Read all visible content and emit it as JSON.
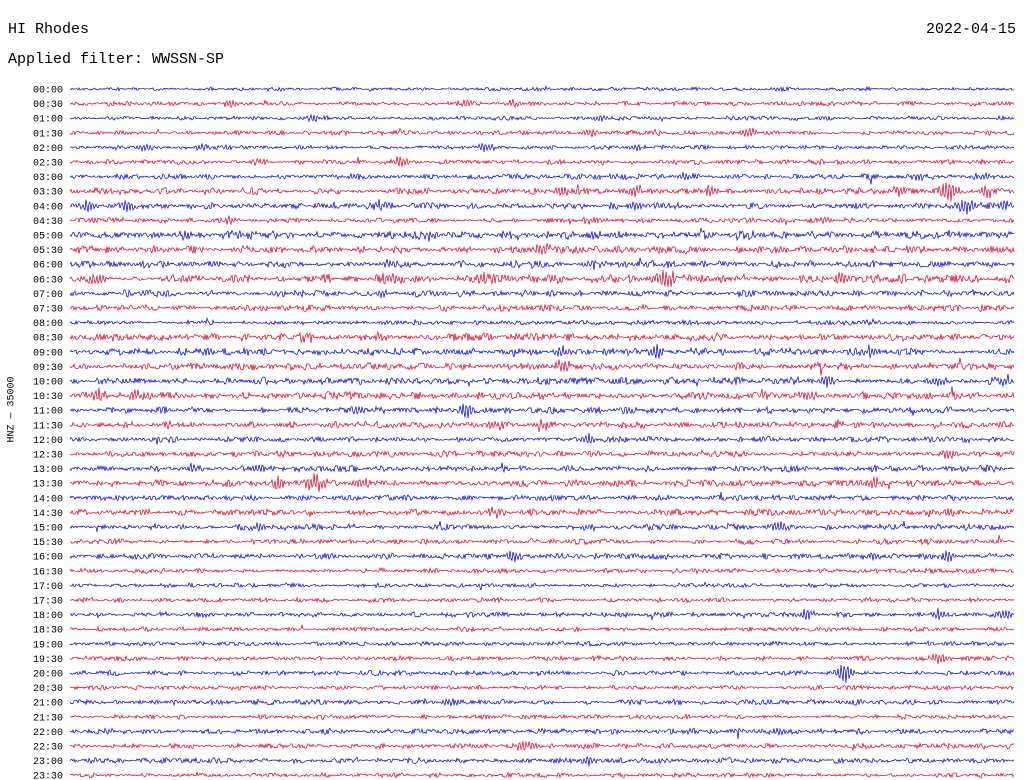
{
  "header": {
    "station": "HI Rhodes",
    "date": "2022-04-15",
    "filter": "Applied filter: WWSSN-SP"
  },
  "y_axis_label": "HNZ — 35000",
  "chart_data": {
    "type": "line",
    "subtype": "helicorder-seismogram",
    "title": "HI Rhodes",
    "date": "2022-04-15",
    "filter": "WWSSN-SP",
    "channel": "HNZ",
    "scale": 35000,
    "ylabel": "HNZ — 35000",
    "row_interval_minutes": 30,
    "rows_count": 48,
    "legend_position": "none",
    "grid": false,
    "trace_colors": {
      "blue": "#0000cc",
      "red": "#d4002a"
    },
    "rows": [
      {
        "label": "00:00",
        "color": "blue",
        "noise": 0.8,
        "events": [
          [
            0.22,
            1.2
          ],
          [
            0.5,
            1.2
          ],
          [
            0.75,
            1.2
          ]
        ]
      },
      {
        "label": "00:30",
        "color": "red",
        "noise": 1.0,
        "events": [
          [
            0.17,
            2.0
          ],
          [
            0.42,
            2.2
          ],
          [
            0.47,
            1.8
          ]
        ]
      },
      {
        "label": "01:00",
        "color": "blue",
        "noise": 0.9,
        "events": [
          [
            0.26,
            2.2
          ],
          [
            0.56,
            1.5
          ]
        ]
      },
      {
        "label": "01:30",
        "color": "red",
        "noise": 1.0,
        "events": [
          [
            0.55,
            2.0
          ],
          [
            0.72,
            2.8
          ]
        ]
      },
      {
        "label": "02:00",
        "color": "blue",
        "noise": 0.9,
        "events": [
          [
            0.08,
            2.0
          ],
          [
            0.14,
            2.0
          ],
          [
            0.44,
            2.0
          ],
          [
            0.6,
            1.5
          ]
        ]
      },
      {
        "label": "02:30",
        "color": "red",
        "noise": 1.1,
        "events": [
          [
            0.2,
            1.5
          ],
          [
            0.35,
            3.2
          ]
        ]
      },
      {
        "label": "03:00",
        "color": "blue",
        "noise": 1.2,
        "events": [
          [
            0.3,
            1.5
          ],
          [
            0.65,
            2.0
          ],
          [
            0.9,
            2.2
          ],
          [
            0.97,
            2.2
          ]
        ]
      },
      {
        "label": "03:30",
        "color": "red",
        "noise": 1.4,
        "events": [
          [
            0.52,
            2.8
          ],
          [
            0.6,
            3.2
          ],
          [
            0.68,
            2.8
          ],
          [
            0.88,
            2.5
          ],
          [
            0.93,
            5.5,
            0.012
          ],
          [
            0.97,
            3.5
          ]
        ]
      },
      {
        "label": "04:00",
        "color": "blue",
        "noise": 1.4,
        "events": [
          [
            0.02,
            3.0
          ],
          [
            0.06,
            3.2
          ],
          [
            0.33,
            2.5
          ],
          [
            0.6,
            2.0
          ],
          [
            0.95,
            3.8,
            0.012
          ],
          [
            0.99,
            3.0
          ]
        ]
      },
      {
        "label": "04:30",
        "color": "red",
        "noise": 1.1,
        "events": [
          [
            0.17,
            2.2
          ],
          [
            0.55,
            1.5
          ],
          [
            0.8,
            1.5
          ]
        ]
      },
      {
        "label": "05:00",
        "color": "blue",
        "noise": 1.9,
        "events": [
          [
            0.38,
            2.5
          ]
        ]
      },
      {
        "label": "05:30",
        "color": "red",
        "noise": 1.7,
        "events": [
          [
            0.5,
            2.5
          ]
        ]
      },
      {
        "label": "06:00",
        "color": "blue",
        "noise": 1.5,
        "events": [
          [
            0.34,
            2.8
          ],
          [
            0.55,
            2.2
          ]
        ]
      },
      {
        "label": "06:30",
        "color": "red",
        "noise": 1.9,
        "events": [
          [
            0.03,
            2.8
          ],
          [
            0.34,
            2.8
          ],
          [
            0.44,
            3.0
          ],
          [
            0.63,
            4.5,
            0.012
          ],
          [
            0.82,
            2.8
          ]
        ]
      },
      {
        "label": "07:00",
        "color": "blue",
        "noise": 1.5,
        "events": [
          [
            0.33,
            2.2
          ],
          [
            0.75,
            1.5
          ]
        ]
      },
      {
        "label": "07:30",
        "color": "red",
        "noise": 1.4,
        "events": [
          [
            0.5,
            1.5
          ]
        ]
      },
      {
        "label": "08:00",
        "color": "blue",
        "noise": 1.0,
        "events": [
          [
            0.85,
            1.8
          ]
        ]
      },
      {
        "label": "08:30",
        "color": "red",
        "noise": 1.6,
        "events": [
          [
            0.05,
            2.2
          ],
          [
            0.25,
            2.4
          ],
          [
            0.33,
            2.2
          ]
        ]
      },
      {
        "label": "09:00",
        "color": "blue",
        "noise": 1.6,
        "events": [
          [
            0.52,
            2.8
          ],
          [
            0.62,
            2.4
          ],
          [
            0.85,
            2.4
          ]
        ]
      },
      {
        "label": "09:30",
        "color": "red",
        "noise": 1.6,
        "events": [
          [
            0.52,
            2.8
          ]
        ]
      },
      {
        "label": "10:00",
        "color": "blue",
        "noise": 1.6,
        "events": [
          [
            0.8,
            2.4
          ],
          [
            0.92,
            2.4
          ],
          [
            0.99,
            2.8
          ]
        ]
      },
      {
        "label": "10:30",
        "color": "red",
        "noise": 1.7,
        "events": [
          [
            0.03,
            3.5
          ],
          [
            0.07,
            3.0
          ],
          [
            0.78,
            2.6
          ]
        ]
      },
      {
        "label": "11:00",
        "color": "blue",
        "noise": 1.4,
        "events": [
          [
            0.42,
            4.2,
            0.006
          ]
        ]
      },
      {
        "label": "11:30",
        "color": "red",
        "noise": 1.5,
        "events": [
          [
            0.1,
            2.4
          ],
          [
            0.45,
            2.8
          ],
          [
            0.5,
            2.6
          ]
        ]
      },
      {
        "label": "12:00",
        "color": "blue",
        "noise": 1.3,
        "events": [
          [
            0.55,
            3.2,
            0.005
          ]
        ]
      },
      {
        "label": "12:30",
        "color": "red",
        "noise": 1.3,
        "events": [
          [
            0.93,
            2.4
          ]
        ]
      },
      {
        "label": "13:00",
        "color": "blue",
        "noise": 1.4,
        "events": [
          [
            0.13,
            2.4
          ],
          [
            0.2,
            2.0
          ]
        ]
      },
      {
        "label": "13:30",
        "color": "red",
        "noise": 1.5,
        "events": [
          [
            0.22,
            3.6
          ],
          [
            0.26,
            4.2,
            0.012
          ],
          [
            0.31,
            2.8
          ],
          [
            0.85,
            2.6
          ]
        ]
      },
      {
        "label": "14:00",
        "color": "blue",
        "noise": 1.2,
        "events": [
          [
            0.5,
            1.4
          ]
        ]
      },
      {
        "label": "14:30",
        "color": "red",
        "noise": 1.4,
        "events": [
          [
            0.45,
            2.8
          ],
          [
            0.93,
            2.8
          ]
        ]
      },
      {
        "label": "15:00",
        "color": "blue",
        "noise": 1.3,
        "events": [
          [
            0.2,
            2.4
          ],
          [
            0.55,
            2.0
          ],
          [
            0.75,
            2.4
          ]
        ]
      },
      {
        "label": "15:30",
        "color": "red",
        "noise": 1.2,
        "events": []
      },
      {
        "label": "16:00",
        "color": "blue",
        "noise": 1.3,
        "events": [
          [
            0.47,
            3.2
          ],
          [
            0.85,
            2.4
          ],
          [
            0.93,
            2.2
          ]
        ]
      },
      {
        "label": "16:30",
        "color": "red",
        "noise": 1.1,
        "events": []
      },
      {
        "label": "17:00",
        "color": "blue",
        "noise": 1.0,
        "events": []
      },
      {
        "label": "17:30",
        "color": "red",
        "noise": 1.0,
        "events": []
      },
      {
        "label": "18:00",
        "color": "blue",
        "noise": 1.1,
        "events": [
          [
            0.78,
            2.8
          ],
          [
            0.92,
            3.2
          ],
          [
            0.99,
            2.8
          ]
        ]
      },
      {
        "label": "18:30",
        "color": "red",
        "noise": 1.0,
        "events": []
      },
      {
        "label": "19:00",
        "color": "blue",
        "noise": 1.0,
        "events": []
      },
      {
        "label": "19:30",
        "color": "red",
        "noise": 1.1,
        "events": [
          [
            0.92,
            3.2
          ]
        ]
      },
      {
        "label": "20:00",
        "color": "blue",
        "noise": 1.1,
        "events": [
          [
            0.82,
            5.5,
            0.008
          ]
        ]
      },
      {
        "label": "20:30",
        "color": "red",
        "noise": 1.0,
        "events": []
      },
      {
        "label": "21:00",
        "color": "blue",
        "noise": 1.2,
        "events": [
          [
            0.4,
            1.8
          ]
        ]
      },
      {
        "label": "21:30",
        "color": "red",
        "noise": 1.0,
        "events": []
      },
      {
        "label": "22:00",
        "color": "blue",
        "noise": 1.2,
        "events": [
          [
            0.75,
            1.8
          ]
        ]
      },
      {
        "label": "22:30",
        "color": "red",
        "noise": 1.2,
        "events": [
          [
            0.48,
            3.2
          ]
        ]
      },
      {
        "label": "23:00",
        "color": "blue",
        "noise": 1.2,
        "events": [
          [
            0.55,
            2.4
          ]
        ]
      },
      {
        "label": "23:30",
        "color": "red",
        "noise": 1.0,
        "events": []
      }
    ]
  }
}
